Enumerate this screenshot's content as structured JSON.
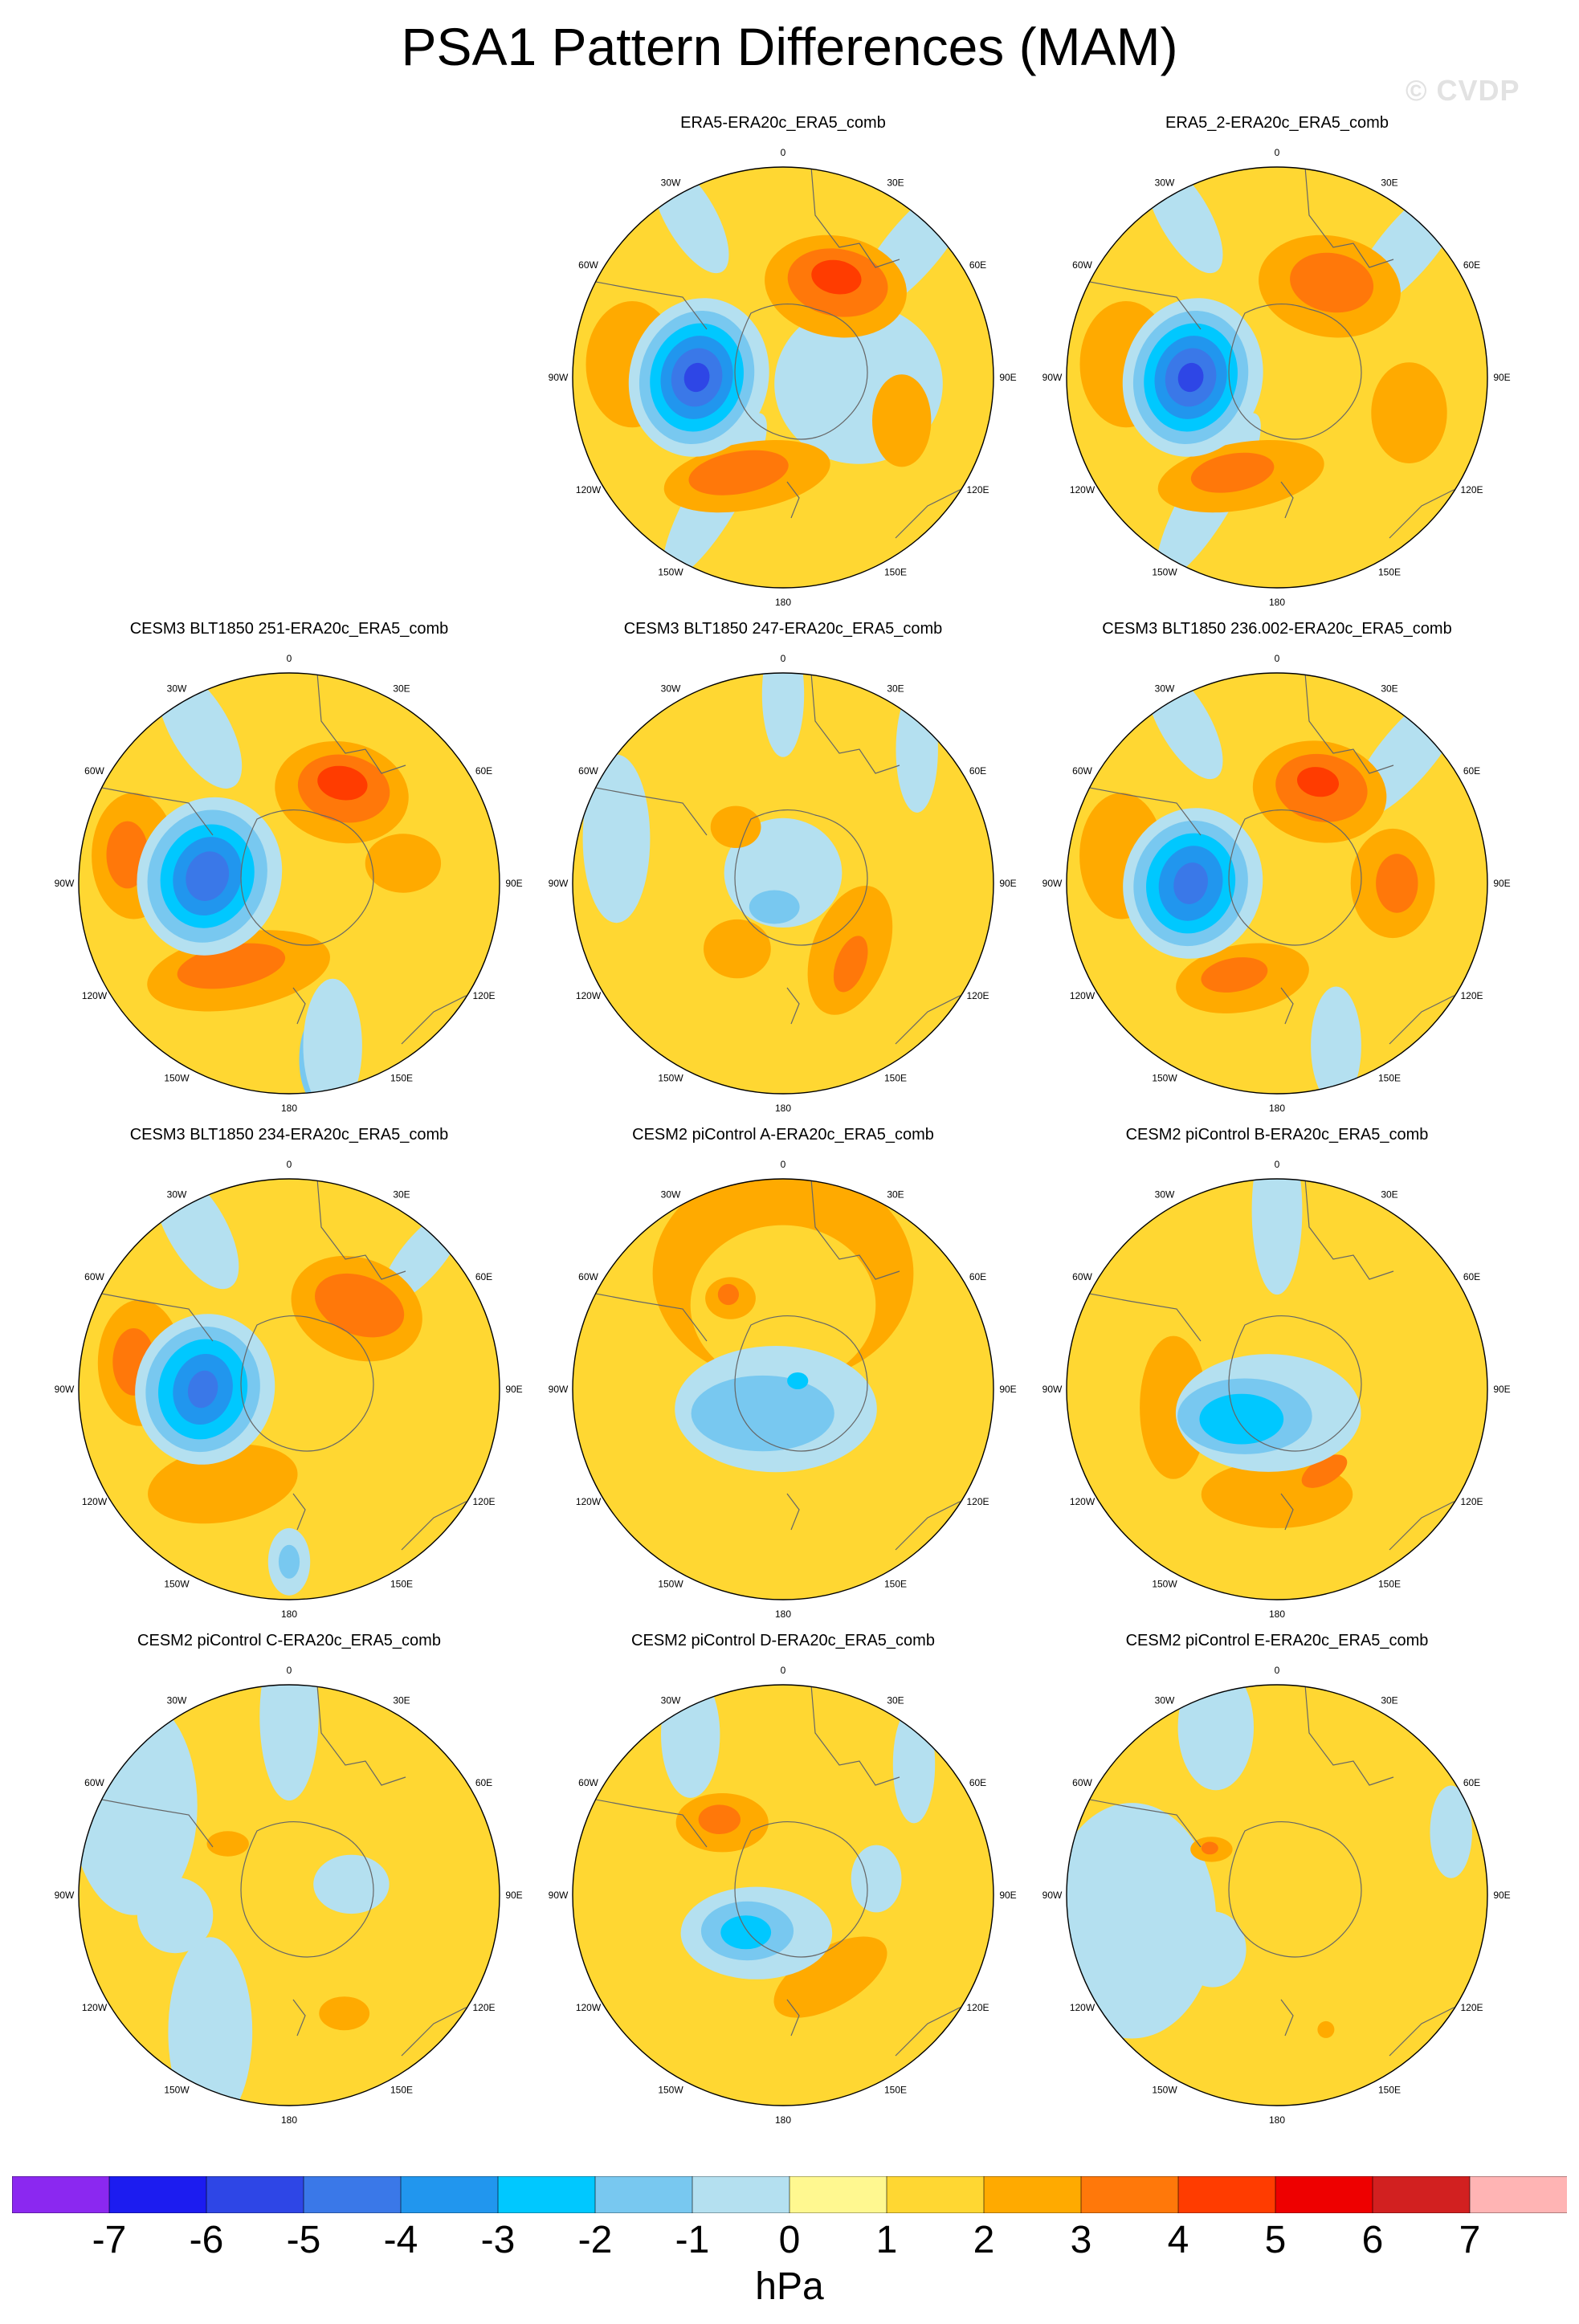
{
  "title": "PSA1 Pattern Differences (MAM)",
  "watermark": "© CVDP",
  "longitude_labels": [
    "0",
    "30E",
    "60E",
    "90E",
    "120E",
    "150E",
    "180",
    "150W",
    "120W",
    "90W",
    "60W",
    "30W"
  ],
  "panels": [
    {
      "title": "ERA5-ERA20c_ERA5_comb",
      "features": [
        {
          "v": -1,
          "lon": 95,
          "r": 0.36,
          "a": 0.4,
          "b": 0.38,
          "rot": 0
        },
        {
          "v": -1,
          "lon": 210,
          "r": 0.65,
          "a": 0.12,
          "b": 0.45,
          "rot": 30
        },
        {
          "v": -1,
          "lon": 45,
          "r": 0.88,
          "a": 0.13,
          "b": 0.4,
          "rot": 40
        },
        {
          "v": -1,
          "lon": 330,
          "r": 0.88,
          "a": 0.12,
          "b": 0.3,
          "rot": -30
        },
        {
          "v": 2,
          "lon": 30,
          "r": 0.5,
          "a": 0.34,
          "b": 0.24,
          "rot": 10
        },
        {
          "v": 3,
          "lon": 30,
          "r": 0.52,
          "a": 0.24,
          "b": 0.16,
          "rot": 10
        },
        {
          "v": 4,
          "lon": 28,
          "r": 0.54,
          "a": 0.12,
          "b": 0.08,
          "rot": 10
        },
        {
          "v": 2,
          "lon": 200,
          "r": 0.5,
          "a": 0.4,
          "b": 0.16,
          "rot": -10
        },
        {
          "v": 3,
          "lon": 205,
          "r": 0.5,
          "a": 0.24,
          "b": 0.1,
          "rot": -10
        },
        {
          "v": 2,
          "lon": 275,
          "r": 0.72,
          "a": 0.22,
          "b": 0.3,
          "rot": 0
        },
        {
          "v": 2,
          "lon": 110,
          "r": 0.6,
          "a": 0.14,
          "b": 0.22,
          "rot": 0
        },
        {
          "v": -1,
          "lon": 270,
          "r": 0.4,
          "a": 0.33,
          "b": 0.38,
          "rot": 15
        },
        {
          "v": -2,
          "lon": 270,
          "r": 0.41,
          "a": 0.27,
          "b": 0.32,
          "rot": 15
        },
        {
          "v": -3,
          "lon": 270,
          "r": 0.41,
          "a": 0.22,
          "b": 0.26,
          "rot": 15
        },
        {
          "v": -4,
          "lon": 270,
          "r": 0.41,
          "a": 0.17,
          "b": 0.2,
          "rot": 15
        },
        {
          "v": -5,
          "lon": 270,
          "r": 0.41,
          "a": 0.12,
          "b": 0.14,
          "rot": 15
        },
        {
          "v": -6,
          "lon": 270,
          "r": 0.41,
          "a": 0.06,
          "b": 0.07,
          "rot": 15
        }
      ]
    },
    {
      "title": "ERA5_2-ERA20c_ERA5_comb",
      "features": [
        {
          "v": -1,
          "lon": 210,
          "r": 0.65,
          "a": 0.12,
          "b": 0.45,
          "rot": 30
        },
        {
          "v": -1,
          "lon": 45,
          "r": 0.88,
          "a": 0.13,
          "b": 0.4,
          "rot": 40
        },
        {
          "v": -1,
          "lon": 330,
          "r": 0.88,
          "a": 0.12,
          "b": 0.3,
          "rot": -30
        },
        {
          "v": 2,
          "lon": 30,
          "r": 0.5,
          "a": 0.34,
          "b": 0.24,
          "rot": 10
        },
        {
          "v": 3,
          "lon": 30,
          "r": 0.52,
          "a": 0.2,
          "b": 0.14,
          "rot": 10
        },
        {
          "v": 2,
          "lon": 200,
          "r": 0.5,
          "a": 0.4,
          "b": 0.16,
          "rot": -10
        },
        {
          "v": 3,
          "lon": 205,
          "r": 0.5,
          "a": 0.2,
          "b": 0.09,
          "rot": -10
        },
        {
          "v": 2,
          "lon": 275,
          "r": 0.72,
          "a": 0.22,
          "b": 0.3,
          "rot": 0
        },
        {
          "v": 2,
          "lon": 105,
          "r": 0.65,
          "a": 0.18,
          "b": 0.24,
          "rot": 0
        },
        {
          "v": -1,
          "lon": 270,
          "r": 0.4,
          "a": 0.33,
          "b": 0.38,
          "rot": 15
        },
        {
          "v": -2,
          "lon": 270,
          "r": 0.41,
          "a": 0.27,
          "b": 0.32,
          "rot": 15
        },
        {
          "v": -3,
          "lon": 270,
          "r": 0.41,
          "a": 0.22,
          "b": 0.26,
          "rot": 15
        },
        {
          "v": -4,
          "lon": 270,
          "r": 0.41,
          "a": 0.17,
          "b": 0.2,
          "rot": 15
        },
        {
          "v": -5,
          "lon": 270,
          "r": 0.41,
          "a": 0.12,
          "b": 0.14,
          "rot": 15
        },
        {
          "v": -6,
          "lon": 270,
          "r": 0.41,
          "a": 0.06,
          "b": 0.07,
          "rot": 15
        }
      ]
    },
    {
      "title": "CESM3 BLT1850 251-ERA20c_ERA5_comb",
      "features": [
        {
          "v": -1,
          "lon": 330,
          "r": 0.85,
          "a": 0.14,
          "b": 0.32,
          "rot": -30
        },
        {
          "v": -2,
          "lon": 170,
          "r": 0.85,
          "a": 0.1,
          "b": 0.22,
          "rot": 0
        },
        {
          "v": -1,
          "lon": 165,
          "r": 0.8,
          "a": 0.14,
          "b": 0.32,
          "rot": 0
        },
        {
          "v": 2,
          "lon": 30,
          "r": 0.5,
          "a": 0.32,
          "b": 0.24,
          "rot": 10
        },
        {
          "v": 3,
          "lon": 30,
          "r": 0.52,
          "a": 0.22,
          "b": 0.16,
          "rot": 10
        },
        {
          "v": 4,
          "lon": 28,
          "r": 0.54,
          "a": 0.12,
          "b": 0.08,
          "rot": 10
        },
        {
          "v": 2,
          "lon": 210,
          "r": 0.48,
          "a": 0.44,
          "b": 0.18,
          "rot": -10
        },
        {
          "v": 3,
          "lon": 215,
          "r": 0.48,
          "a": 0.26,
          "b": 0.1,
          "rot": -10
        },
        {
          "v": 2,
          "lon": 280,
          "r": 0.75,
          "a": 0.2,
          "b": 0.3,
          "rot": 0
        },
        {
          "v": 3,
          "lon": 280,
          "r": 0.78,
          "a": 0.1,
          "b": 0.16,
          "rot": 0
        },
        {
          "v": 2,
          "lon": 80,
          "r": 0.55,
          "a": 0.18,
          "b": 0.14,
          "rot": 0
        },
        {
          "v": -1,
          "lon": 275,
          "r": 0.38,
          "a": 0.34,
          "b": 0.38,
          "rot": 20
        },
        {
          "v": -2,
          "lon": 275,
          "r": 0.39,
          "a": 0.28,
          "b": 0.32,
          "rot": 20
        },
        {
          "v": -3,
          "lon": 275,
          "r": 0.39,
          "a": 0.22,
          "b": 0.25,
          "rot": 20
        },
        {
          "v": -4,
          "lon": 275,
          "r": 0.39,
          "a": 0.16,
          "b": 0.19,
          "rot": 20
        },
        {
          "v": -5,
          "lon": 275,
          "r": 0.39,
          "a": 0.1,
          "b": 0.12,
          "rot": 20
        }
      ]
    },
    {
      "title": "CESM3 BLT1850 247-ERA20c_ERA5_comb",
      "features": [
        {
          "v": -1,
          "lon": 0,
          "r": 0.05,
          "a": 0.28,
          "b": 0.26,
          "rot": 0
        },
        {
          "v": -2,
          "lon": 200,
          "r": 0.12,
          "a": 0.12,
          "b": 0.08,
          "rot": 0
        },
        {
          "v": -1,
          "lon": 285,
          "r": 0.82,
          "a": 0.16,
          "b": 0.4,
          "rot": 0
        },
        {
          "v": -1,
          "lon": 0,
          "r": 0.9,
          "a": 0.1,
          "b": 0.3,
          "rot": 0
        },
        {
          "v": -1,
          "lon": 45,
          "r": 0.9,
          "a": 0.1,
          "b": 0.3,
          "rot": 0
        },
        {
          "v": 2,
          "lon": 135,
          "r": 0.45,
          "a": 0.18,
          "b": 0.32,
          "rot": 20
        },
        {
          "v": 3,
          "lon": 140,
          "r": 0.5,
          "a": 0.07,
          "b": 0.14,
          "rot": 20
        },
        {
          "v": 2,
          "lon": 215,
          "r": 0.38,
          "a": 0.16,
          "b": 0.14,
          "rot": 0
        },
        {
          "v": 2,
          "lon": 320,
          "r": 0.35,
          "a": 0.12,
          "b": 0.1,
          "rot": 0
        }
      ]
    },
    {
      "title": "CESM3 BLT1850 236.002-ERA20c_ERA5_comb",
      "features": [
        {
          "v": -1,
          "lon": 45,
          "r": 0.88,
          "a": 0.13,
          "b": 0.4,
          "rot": 40
        },
        {
          "v": -1,
          "lon": 330,
          "r": 0.88,
          "a": 0.12,
          "b": 0.3,
          "rot": -30
        },
        {
          "v": -2,
          "lon": 160,
          "r": 0.85,
          "a": 0.08,
          "b": 0.18,
          "rot": 0
        },
        {
          "v": -1,
          "lon": 160,
          "r": 0.82,
          "a": 0.12,
          "b": 0.28,
          "rot": 0
        },
        {
          "v": 2,
          "lon": 25,
          "r": 0.48,
          "a": 0.32,
          "b": 0.24,
          "rot": 10
        },
        {
          "v": 3,
          "lon": 25,
          "r": 0.5,
          "a": 0.22,
          "b": 0.16,
          "rot": 10
        },
        {
          "v": 4,
          "lon": 22,
          "r": 0.52,
          "a": 0.1,
          "b": 0.07,
          "rot": 10
        },
        {
          "v": 2,
          "lon": 90,
          "r": 0.55,
          "a": 0.2,
          "b": 0.26,
          "rot": 0
        },
        {
          "v": 3,
          "lon": 90,
          "r": 0.57,
          "a": 0.1,
          "b": 0.14,
          "rot": 0
        },
        {
          "v": 2,
          "lon": 200,
          "r": 0.48,
          "a": 0.32,
          "b": 0.16,
          "rot": -10
        },
        {
          "v": 3,
          "lon": 205,
          "r": 0.48,
          "a": 0.16,
          "b": 0.08,
          "rot": -10
        },
        {
          "v": 2,
          "lon": 280,
          "r": 0.75,
          "a": 0.2,
          "b": 0.3,
          "rot": 0
        },
        {
          "v": -1,
          "lon": 270,
          "r": 0.4,
          "a": 0.33,
          "b": 0.36,
          "rot": 15
        },
        {
          "v": -2,
          "lon": 270,
          "r": 0.41,
          "a": 0.27,
          "b": 0.3,
          "rot": 15
        },
        {
          "v": -3,
          "lon": 270,
          "r": 0.41,
          "a": 0.21,
          "b": 0.24,
          "rot": 15
        },
        {
          "v": -4,
          "lon": 270,
          "r": 0.41,
          "a": 0.15,
          "b": 0.18,
          "rot": 15
        },
        {
          "v": -5,
          "lon": 270,
          "r": 0.41,
          "a": 0.08,
          "b": 0.1,
          "rot": 15
        }
      ]
    },
    {
      "title": "CESM3 BLT1850 234-ERA20c_ERA5_comb",
      "features": [
        {
          "v": -1,
          "lon": 330,
          "r": 0.88,
          "a": 0.14,
          "b": 0.32,
          "rot": -30
        },
        {
          "v": -1,
          "lon": 45,
          "r": 0.9,
          "a": 0.1,
          "b": 0.28,
          "rot": 40
        },
        {
          "v": -1,
          "lon": 180,
          "r": 0.82,
          "a": 0.1,
          "b": 0.16,
          "rot": 0
        },
        {
          "v": -2,
          "lon": 180,
          "r": 0.82,
          "a": 0.05,
          "b": 0.08,
          "rot": 0
        },
        {
          "v": 2,
          "lon": 40,
          "r": 0.5,
          "a": 0.32,
          "b": 0.24,
          "rot": 20
        },
        {
          "v": 3,
          "lon": 40,
          "r": 0.52,
          "a": 0.22,
          "b": 0.14,
          "rot": 20
        },
        {
          "v": 2,
          "lon": 215,
          "r": 0.55,
          "a": 0.36,
          "b": 0.18,
          "rot": -10
        },
        {
          "v": 2,
          "lon": 280,
          "r": 0.72,
          "a": 0.2,
          "b": 0.3,
          "rot": 0
        },
        {
          "v": 3,
          "lon": 280,
          "r": 0.75,
          "a": 0.1,
          "b": 0.16,
          "rot": 0
        },
        {
          "v": -1,
          "lon": 270,
          "r": 0.4,
          "a": 0.33,
          "b": 0.36,
          "rot": 15
        },
        {
          "v": -2,
          "lon": 270,
          "r": 0.41,
          "a": 0.27,
          "b": 0.3,
          "rot": 15
        },
        {
          "v": -3,
          "lon": 270,
          "r": 0.41,
          "a": 0.21,
          "b": 0.24,
          "rot": 15
        },
        {
          "v": -4,
          "lon": 270,
          "r": 0.41,
          "a": 0.14,
          "b": 0.17,
          "rot": 15
        },
        {
          "v": -5,
          "lon": 270,
          "r": 0.41,
          "a": 0.07,
          "b": 0.09,
          "rot": 15
        }
      ]
    },
    {
      "title": "CESM2 piControl A-ERA20c_ERA5_comb",
      "features": [
        {
          "v": 2,
          "lon": 0,
          "r": 0.55,
          "a": 0.62,
          "b": 0.52,
          "rot": 0
        },
        {
          "v": 1,
          "lon": 0,
          "r": 0.4,
          "a": 0.44,
          "b": 0.38,
          "rot": 0
        },
        {
          "v": 2,
          "lon": 330,
          "r": 0.5,
          "a": 0.12,
          "b": 0.1,
          "rot": 0
        },
        {
          "v": 3,
          "lon": 330,
          "r": 0.52,
          "a": 0.05,
          "b": 0.05,
          "rot": 0
        },
        {
          "v": -1,
          "lon": 200,
          "r": 0.1,
          "a": 0.48,
          "b": 0.3,
          "rot": 0
        },
        {
          "v": -2,
          "lon": 220,
          "r": 0.15,
          "a": 0.34,
          "b": 0.18,
          "rot": 0
        },
        {
          "v": -3,
          "lon": 60,
          "r": 0.08,
          "a": 0.05,
          "b": 0.04,
          "rot": 0
        }
      ]
    },
    {
      "title": "CESM2 piControl B-ERA20c_ERA5_comb",
      "features": [
        {
          "v": -1,
          "lon": 0,
          "r": 0.85,
          "a": 0.12,
          "b": 0.4,
          "rot": 0
        },
        {
          "v": 2,
          "lon": 260,
          "r": 0.5,
          "a": 0.16,
          "b": 0.34,
          "rot": 0
        },
        {
          "v": 2,
          "lon": 180,
          "r": 0.5,
          "a": 0.36,
          "b": 0.16,
          "rot": 0
        },
        {
          "v": 3,
          "lon": 150,
          "r": 0.45,
          "a": 0.12,
          "b": 0.06,
          "rot": -30
        },
        {
          "v": -1,
          "lon": 200,
          "r": 0.12,
          "a": 0.44,
          "b": 0.28,
          "rot": 0
        },
        {
          "v": -2,
          "lon": 230,
          "r": 0.2,
          "a": 0.32,
          "b": 0.18,
          "rot": 0
        },
        {
          "v": -3,
          "lon": 230,
          "r": 0.22,
          "a": 0.2,
          "b": 0.12,
          "rot": 0
        }
      ]
    },
    {
      "title": "CESM2 piControl C-ERA20c_ERA5_comb",
      "features": [
        {
          "v": -1,
          "lon": 300,
          "r": 0.85,
          "a": 0.3,
          "b": 0.52,
          "rot": 0
        },
        {
          "v": -1,
          "lon": 0,
          "r": 0.85,
          "a": 0.14,
          "b": 0.4,
          "rot": 0
        },
        {
          "v": -1,
          "lon": 210,
          "r": 0.75,
          "a": 0.2,
          "b": 0.45,
          "rot": 0
        },
        {
          "v": -1,
          "lon": 80,
          "r": 0.3,
          "a": 0.18,
          "b": 0.14,
          "rot": 0
        },
        {
          "v": -1,
          "lon": 260,
          "r": 0.55,
          "a": 0.18,
          "b": 0.18,
          "rot": 0
        },
        {
          "v": 2,
          "lon": 310,
          "r": 0.38,
          "a": 0.1,
          "b": 0.06,
          "rot": 0
        },
        {
          "v": 2,
          "lon": 155,
          "r": 0.62,
          "a": 0.12,
          "b": 0.08,
          "rot": 0
        }
      ]
    },
    {
      "title": "CESM2 piControl D-ERA20c_ERA5_comb",
      "features": [
        {
          "v": -1,
          "lon": 330,
          "r": 0.88,
          "a": 0.14,
          "b": 0.3,
          "rot": 0
        },
        {
          "v": -1,
          "lon": 45,
          "r": 0.88,
          "a": 0.1,
          "b": 0.28,
          "rot": 0
        },
        {
          "v": -1,
          "lon": 80,
          "r": 0.45,
          "a": 0.12,
          "b": 0.16,
          "rot": 0
        },
        {
          "v": 2,
          "lon": 320,
          "r": 0.45,
          "a": 0.22,
          "b": 0.14,
          "rot": 0
        },
        {
          "v": 3,
          "lon": 320,
          "r": 0.47,
          "a": 0.1,
          "b": 0.07,
          "rot": 0
        },
        {
          "v": 2,
          "lon": 150,
          "r": 0.45,
          "a": 0.3,
          "b": 0.14,
          "rot": -30
        },
        {
          "v": -1,
          "lon": 215,
          "r": 0.22,
          "a": 0.36,
          "b": 0.22,
          "rot": 0
        },
        {
          "v": -2,
          "lon": 225,
          "r": 0.24,
          "a": 0.22,
          "b": 0.14,
          "rot": 0
        },
        {
          "v": -3,
          "lon": 225,
          "r": 0.25,
          "a": 0.12,
          "b": 0.08,
          "rot": 0
        }
      ]
    },
    {
      "title": "CESM2 piControl E-ERA20c_ERA5_comb",
      "features": [
        {
          "v": -1,
          "lon": 260,
          "r": 0.7,
          "a": 0.4,
          "b": 0.56,
          "rot": 0
        },
        {
          "v": -1,
          "lon": 340,
          "r": 0.85,
          "a": 0.18,
          "b": 0.3,
          "rot": 0
        },
        {
          "v": -1,
          "lon": 70,
          "r": 0.88,
          "a": 0.1,
          "b": 0.22,
          "rot": 0
        },
        {
          "v": -1,
          "lon": 230,
          "r": 0.4,
          "a": 0.16,
          "b": 0.18,
          "rot": 0
        },
        {
          "v": 2,
          "lon": 305,
          "r": 0.38,
          "a": 0.1,
          "b": 0.06,
          "rot": 0
        },
        {
          "v": 3,
          "lon": 305,
          "r": 0.39,
          "a": 0.04,
          "b": 0.03,
          "rot": 0
        },
        {
          "v": 2,
          "lon": 160,
          "r": 0.68,
          "a": 0.04,
          "b": 0.04,
          "rot": 0
        }
      ]
    }
  ],
  "colorbar": {
    "colors": [
      "#8b28f0",
      "#1c1cf0",
      "#2e46e6",
      "#3a78e8",
      "#2196ee",
      "#00c8ff",
      "#78c8f0",
      "#b4e0f0",
      "#fff890",
      "#ffd732",
      "#ffaa00",
      "#ff780a",
      "#ff3c00",
      "#ee0000",
      "#d22020",
      "#ffb4b4"
    ],
    "labels": [
      "-7",
      "-6",
      "-5",
      "-4",
      "-3",
      "-2",
      "-1",
      "0",
      "1",
      "2",
      "3",
      "4",
      "5",
      "6",
      "7"
    ],
    "units": "hPa"
  }
}
